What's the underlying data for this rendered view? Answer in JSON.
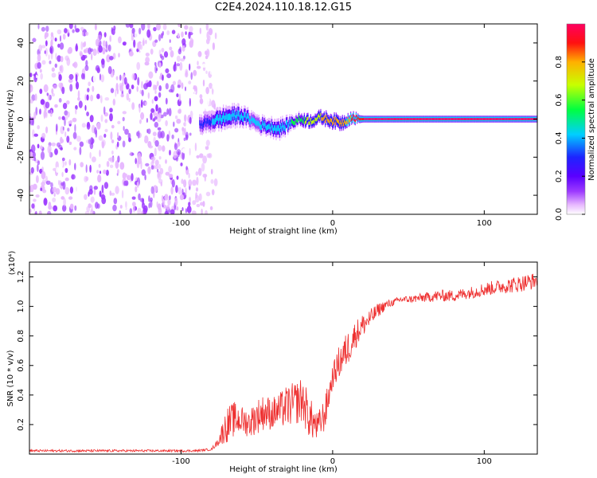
{
  "figure": {
    "title": "C2E4.2024.110.18.12.G15"
  },
  "chart_data": [
    {
      "type": "heatmap",
      "xlabel": "Height of straight line (km)",
      "ylabel": "Frequency (Hz)",
      "xlim": [
        -200,
        135
      ],
      "ylim": [
        -50,
        50
      ],
      "x_ticks": [
        -100,
        0,
        100
      ],
      "y_ticks": [
        40,
        20,
        0,
        -20,
        -40
      ],
      "grid": false,
      "colorbar": {
        "label": "Normalized spectral amplitude",
        "range": [
          0,
          1
        ],
        "ticks": [
          "0.0",
          "0.2",
          "0.4",
          "0.6",
          "0.8"
        ],
        "tick_values": [
          0.0,
          0.2,
          0.4,
          0.6,
          0.8
        ],
        "colors": [
          "#ffffff",
          "#e7b8ff",
          "#9d3bff",
          "#5a00ff",
          "#1d24ff",
          "#00cfff",
          "#00ff40",
          "#c8ff00",
          "#ffb000",
          "#ff1010",
          "#ff0060"
        ]
      },
      "noise_region_x": [
        -200,
        -85
      ],
      "signal_track": {
        "x": [
          -88,
          -80,
          -70,
          -62,
          -55,
          -48,
          -42,
          -36,
          -32,
          -28,
          -22,
          -15,
          -8,
          0,
          6,
          12,
          16,
          20,
          40,
          60,
          80,
          100,
          120,
          135
        ],
        "freq": [
          -3,
          -1,
          1,
          2,
          0,
          -3,
          -4,
          -5,
          -4,
          -2,
          0,
          -1,
          1,
          -1,
          -2,
          1,
          0,
          0,
          0,
          0,
          0,
          0,
          0,
          0
        ],
        "spread": [
          3,
          3.5,
          4,
          3.5,
          3,
          3,
          3,
          3.5,
          3,
          2.5,
          2,
          2,
          2,
          2.2,
          2.2,
          1.8,
          1.5,
          1.2,
          1.2,
          1.2,
          1.2,
          1.2,
          1.2,
          1.2
        ],
        "amplitude": [
          0.4,
          0.45,
          0.5,
          0.5,
          0.45,
          0.45,
          0.5,
          0.5,
          0.5,
          0.55,
          0.6,
          0.7,
          0.75,
          0.8,
          0.8,
          0.85,
          0.9,
          0.95,
          0.98,
          0.98,
          0.98,
          0.98,
          0.98,
          0.98
        ]
      }
    },
    {
      "type": "line",
      "xlabel": "Height of straight line (km)",
      "ylabel": "SNR (10 * v/v)",
      "yscale_label": "(x10⁴)",
      "xlim": [
        -200,
        135
      ],
      "ylim": [
        0,
        1.3
      ],
      "x_ticks": [
        -100,
        0,
        100
      ],
      "y_ticks": [
        1.2,
        1.0,
        0.8,
        0.6,
        0.4,
        0.2
      ],
      "y_tick_labels": [
        "1.2",
        "1.0",
        "0.8",
        "0.6",
        "0.4",
        "0.2"
      ],
      "grid": false,
      "series": [
        {
          "color": "#ee3030",
          "x": [
            -200,
            -150,
            -100,
            -90,
            -80,
            -76,
            -70,
            -65,
            -60,
            -55,
            -50,
            -45,
            -40,
            -35,
            -30,
            -25,
            -20,
            -15,
            -10,
            -5,
            0,
            5,
            10,
            15,
            20,
            25,
            30,
            35,
            40,
            45,
            50,
            60,
            70,
            80,
            90,
            100,
            110,
            120,
            130,
            135
          ],
          "y": [
            0.02,
            0.02,
            0.02,
            0.02,
            0.03,
            0.07,
            0.16,
            0.2,
            0.2,
            0.18,
            0.22,
            0.25,
            0.24,
            0.26,
            0.28,
            0.3,
            0.32,
            0.2,
            0.15,
            0.24,
            0.5,
            0.6,
            0.68,
            0.78,
            0.85,
            0.9,
            0.96,
            1.0,
            1.02,
            1.04,
            1.04,
            1.05,
            1.06,
            1.06,
            1.08,
            1.1,
            1.12,
            1.13,
            1.15,
            1.16
          ],
          "noise": [
            0.01,
            0.01,
            0.01,
            0.01,
            0.01,
            0.03,
            0.15,
            0.15,
            0.12,
            0.12,
            0.15,
            0.15,
            0.14,
            0.15,
            0.18,
            0.18,
            0.2,
            0.18,
            0.12,
            0.15,
            0.1,
            0.15,
            0.15,
            0.12,
            0.1,
            0.08,
            0.06,
            0.04,
            0.03,
            0.03,
            0.03,
            0.04,
            0.05,
            0.05,
            0.05,
            0.06,
            0.06,
            0.07,
            0.07,
            0.07
          ]
        }
      ]
    }
  ]
}
